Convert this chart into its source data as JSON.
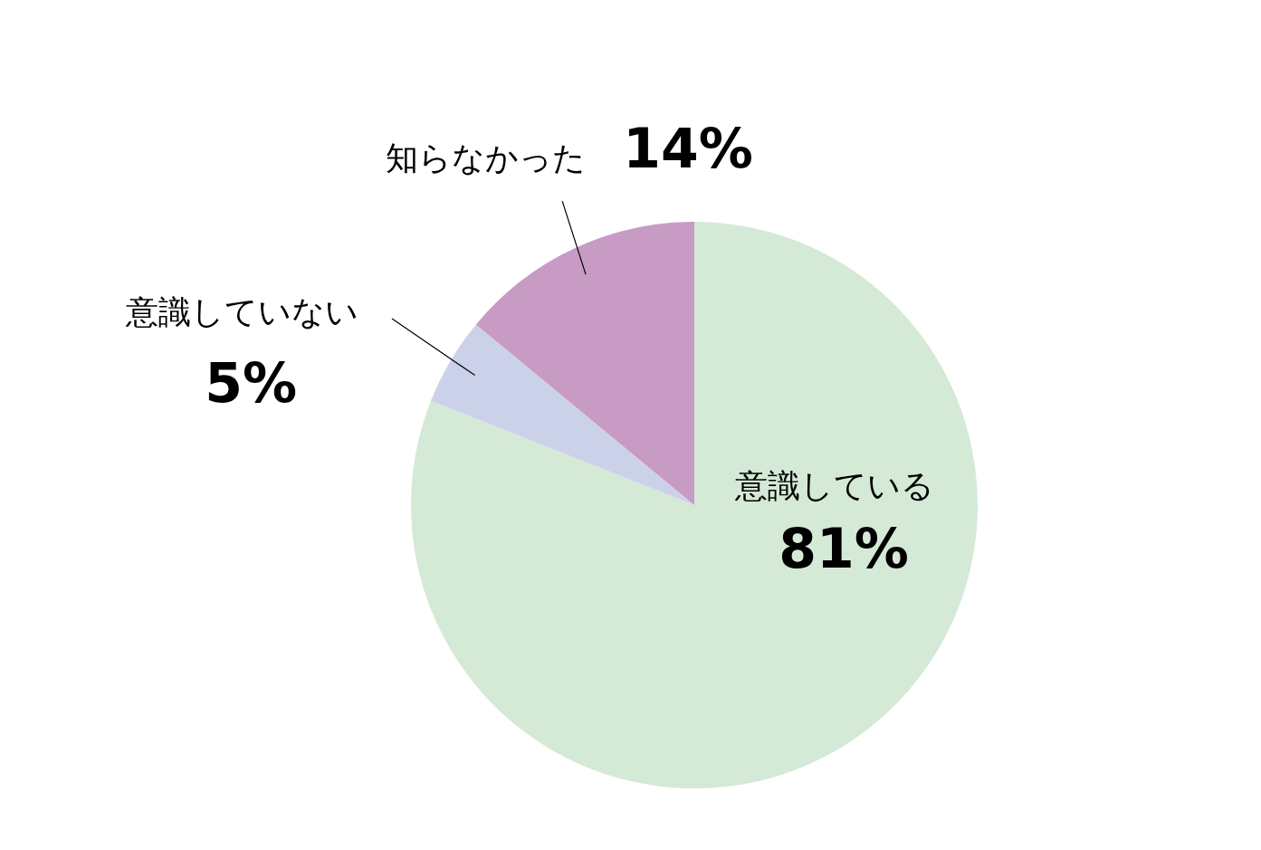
{
  "chart_data": {
    "type": "pie",
    "categories": [
      "意識している",
      "意識していない",
      "知らなかった"
    ],
    "values": [
      81,
      5,
      14
    ],
    "colors": [
      "#d5e9d7",
      "#ccd1ea",
      "#c79bc4"
    ],
    "value_labels": [
      "81%",
      "5%",
      "14%"
    ],
    "legend": false
  }
}
